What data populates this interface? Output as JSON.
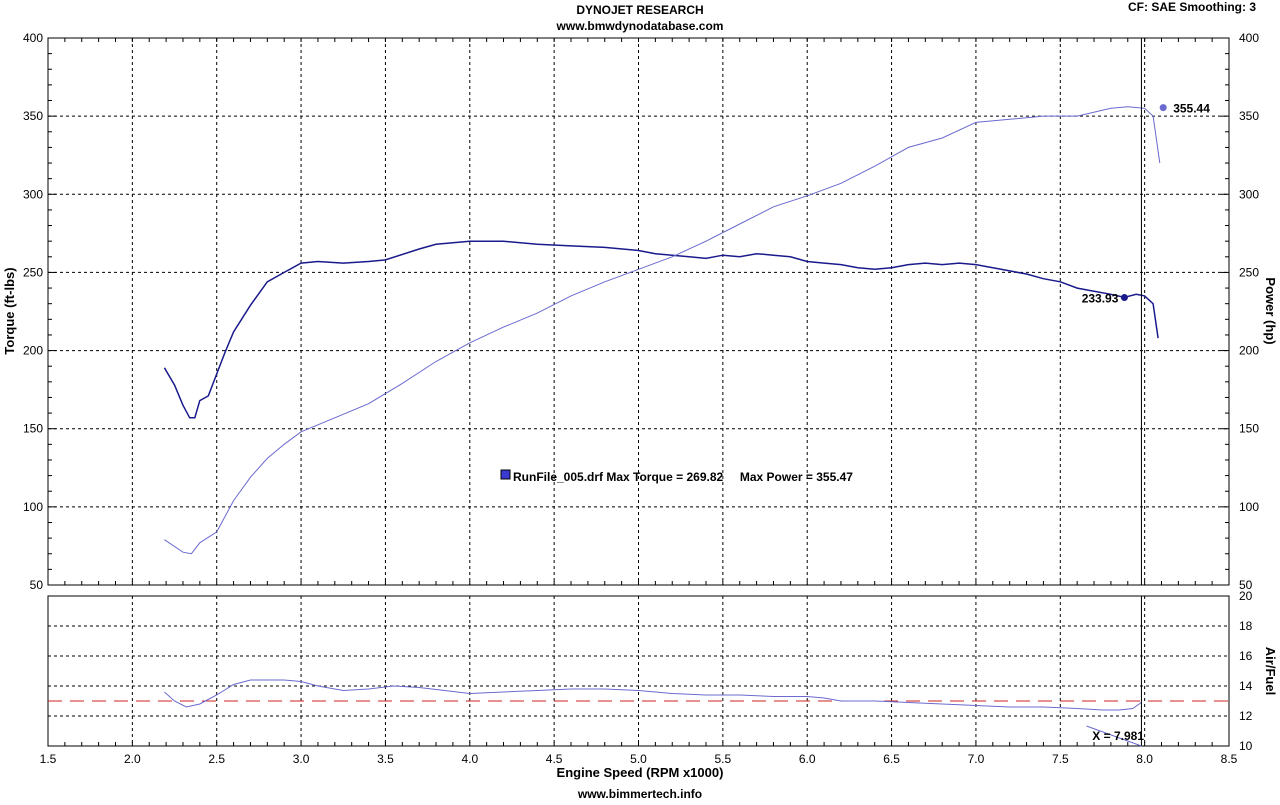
{
  "header": {
    "title": "DYNOJET RESEARCH",
    "subtitle": "www.bmwdynodatabase.com",
    "corner_info": "CF: SAE  Smoothing: 3",
    "footer": "www.bimmertech.info"
  },
  "chart_data": [
    {
      "type": "line",
      "panel": "torque-power",
      "xlabel": "Engine Speed (RPM x1000)",
      "ylabel_left": "Torque (ft-lbs)",
      "ylabel_right": "Power (hp)",
      "xlim": [
        1.5,
        8.5
      ],
      "ylim": [
        50,
        400
      ],
      "xticks": [
        "1.5",
        "2.0",
        "2.5",
        "3.0",
        "3.5",
        "4.0",
        "4.5",
        "5.0",
        "5.5",
        "6.0",
        "6.5",
        "7.0",
        "7.5",
        "8.0",
        "8.5"
      ],
      "yticks_left": [
        "50",
        "100",
        "150",
        "200",
        "250",
        "300",
        "350",
        "400"
      ],
      "yticks_right": [
        "50",
        "100",
        "150",
        "200",
        "250",
        "300",
        "350",
        "400"
      ],
      "grid": true,
      "legend": {
        "text": "RunFile_005.drf Max Torque = 269.82     Max Power = 355.47",
        "position": "center"
      },
      "colors": {
        "torque": "#1a1a8c",
        "power": "#6a6ad0",
        "cursor": "#000000"
      },
      "series": [
        {
          "key": "torque",
          "x": [
            2.19,
            2.25,
            2.3,
            2.34,
            2.37,
            2.4,
            2.45,
            2.5,
            2.55,
            2.6,
            2.7,
            2.8,
            2.9,
            3.0,
            3.1,
            3.25,
            3.4,
            3.5,
            3.7,
            3.8,
            4.0,
            4.1,
            4.2,
            4.4,
            4.6,
            4.8,
            5.0,
            5.1,
            5.2,
            5.3,
            5.4,
            5.5,
            5.6,
            5.7,
            5.8,
            5.9,
            6.0,
            6.1,
            6.2,
            6.3,
            6.4,
            6.5,
            6.6,
            6.7,
            6.8,
            6.9,
            7.0,
            7.1,
            7.2,
            7.3,
            7.4,
            7.5,
            7.6,
            7.7,
            7.8,
            7.88,
            7.95,
            8.0,
            8.05,
            8.08
          ],
          "y": [
            189,
            178,
            165,
            157,
            157,
            168,
            171,
            185,
            199,
            212,
            229,
            244,
            250,
            256,
            257,
            256,
            257,
            258,
            265,
            268,
            270,
            270,
            270,
            268,
            267,
            266,
            264,
            262,
            261,
            260,
            259,
            261,
            260,
            262,
            261,
            260,
            257,
            256,
            255,
            253,
            252,
            253,
            255,
            256,
            255,
            256,
            255,
            253,
            251,
            249,
            246,
            244,
            240,
            238,
            236,
            234,
            236,
            235,
            230,
            208
          ]
        },
        {
          "key": "power",
          "x": [
            2.19,
            2.3,
            2.35,
            2.4,
            2.5,
            2.6,
            2.7,
            2.8,
            2.9,
            3.0,
            3.2,
            3.4,
            3.6,
            3.8,
            4.0,
            4.2,
            4.4,
            4.6,
            4.8,
            5.0,
            5.2,
            5.4,
            5.6,
            5.8,
            6.0,
            6.2,
            6.4,
            6.6,
            6.8,
            7.0,
            7.2,
            7.4,
            7.6,
            7.8,
            7.9,
            8.0,
            8.05,
            8.09
          ],
          "y": [
            79,
            71,
            70,
            77,
            84,
            104,
            119,
            131,
            140,
            148,
            157,
            166,
            179,
            193,
            205,
            215,
            224,
            235,
            244,
            252,
            260,
            270,
            281,
            292,
            299,
            307,
            318,
            330,
            336,
            346,
            348,
            350,
            350,
            355,
            356,
            355,
            350,
            320
          ]
        }
      ],
      "markers": [
        {
          "series": "torque",
          "x": 7.88,
          "y": 233.93,
          "label": "233.93",
          "label_side": "left"
        },
        {
          "series": "power",
          "x": 8.11,
          "y": 355.44,
          "label": "355.44",
          "label_side": "right"
        }
      ],
      "cursor_x": 7.981
    },
    {
      "type": "line",
      "panel": "air-fuel",
      "ylabel_right": "Air/Fuel",
      "xlim": [
        1.5,
        8.5
      ],
      "ylim": [
        10,
        20
      ],
      "yticks_right": [
        "10",
        "12",
        "14",
        "16",
        "18",
        "20"
      ],
      "grid": true,
      "reference_line": 13.0,
      "colors": {
        "afr": "#6a6ad0",
        "reference": "#cc2222"
      },
      "series": [
        {
          "key": "afr",
          "x": [
            2.19,
            2.25,
            2.32,
            2.4,
            2.5,
            2.6,
            2.7,
            2.8,
            2.9,
            3.0,
            3.1,
            3.25,
            3.4,
            3.55,
            3.7,
            3.85,
            4.0,
            4.2,
            4.4,
            4.6,
            4.8,
            5.0,
            5.2,
            5.4,
            5.6,
            5.8,
            6.0,
            6.1,
            6.2,
            6.4,
            6.6,
            6.8,
            7.0,
            7.2,
            7.4,
            7.6,
            7.75,
            7.85,
            7.93,
            7.98
          ],
          "y": [
            13.6,
            13.0,
            12.6,
            12.8,
            13.4,
            14.1,
            14.4,
            14.4,
            14.4,
            14.3,
            14.0,
            13.7,
            13.8,
            14.0,
            13.9,
            13.7,
            13.5,
            13.6,
            13.7,
            13.8,
            13.8,
            13.7,
            13.5,
            13.4,
            13.4,
            13.3,
            13.3,
            13.2,
            13.0,
            13.0,
            12.9,
            12.8,
            12.7,
            12.6,
            12.6,
            12.5,
            12.4,
            12.4,
            12.5,
            12.9
          ]
        }
      ],
      "cursor_x": 7.981,
      "cursor_label": "X = 7.981"
    }
  ]
}
